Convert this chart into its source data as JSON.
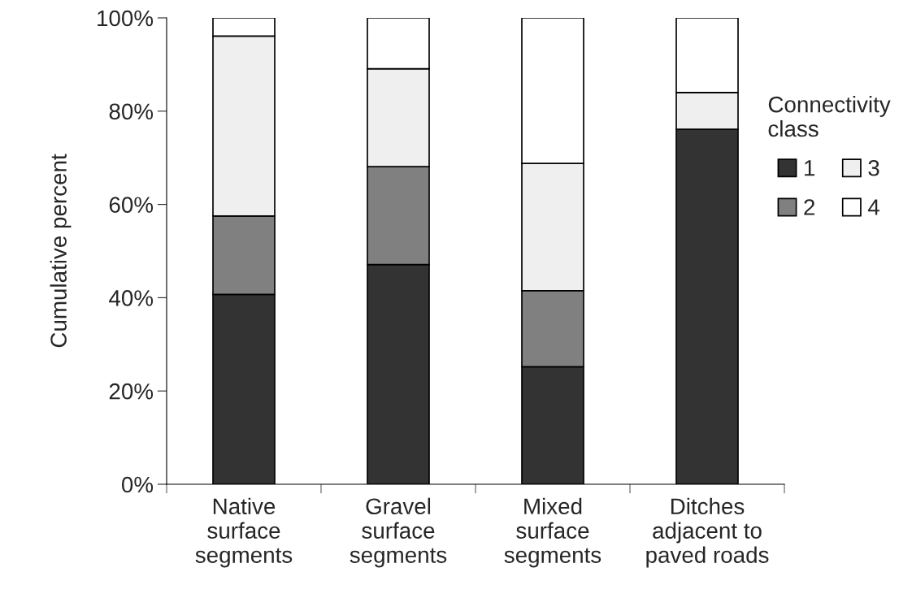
{
  "chart_data": {
    "type": "bar",
    "stacked": true,
    "ylabel": "Cumulative percent",
    "legend_title": "Connectivity\nclass",
    "categories": [
      "Native\nsurface\nsegments",
      "Gravel\nsurface\nsegments",
      "Mixed\nsurface\nsegments",
      "Ditches\nadjacent to\npaved roads"
    ],
    "series": [
      {
        "name": "1",
        "color": "#333333",
        "values": [
          40.7,
          47.1,
          25.2,
          76.1
        ]
      },
      {
        "name": "2",
        "color": "#808080",
        "values": [
          16.8,
          21.0,
          16.3,
          0
        ]
      },
      {
        "name": "3",
        "color": "#efefef",
        "values": [
          38.6,
          21.0,
          27.3,
          7.9
        ]
      },
      {
        "name": "4",
        "color": "#ffffff",
        "values": [
          3.9,
          10.9,
          31.2,
          16.0
        ]
      }
    ],
    "ylim": [
      0,
      100
    ],
    "yticks": [
      {
        "value": 0,
        "label": "0%"
      },
      {
        "value": 20,
        "label": "20%"
      },
      {
        "value": 40,
        "label": "40%"
      },
      {
        "value": 60,
        "label": "60%"
      },
      {
        "value": 80,
        "label": "80%"
      },
      {
        "value": 100,
        "label": "100%"
      }
    ],
    "grid": false,
    "legend": "right"
  }
}
